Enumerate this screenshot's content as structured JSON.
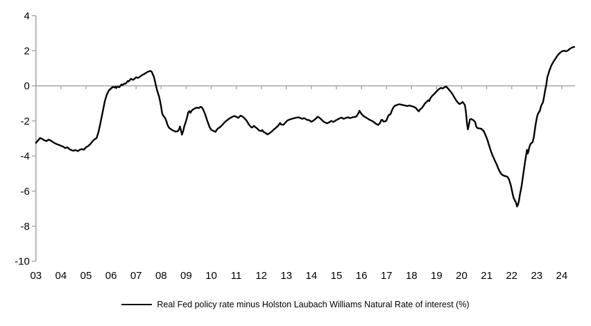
{
  "chart_data": {
    "type": "line",
    "title": "",
    "legend": "Real Fed policy rate minus Holston Laubach Williams Natural Rate of interest (%)",
    "line_color": "#000000",
    "axis_color": "#a6a6a6",
    "text_color": "#000000",
    "grid": "zero-line-only",
    "legend_position": "bottom-center",
    "ylim": [
      -10,
      4
    ],
    "xlim": [
      2003,
      2024.6
    ],
    "y_ticks": [
      4,
      2,
      0,
      -2,
      -4,
      -6,
      -8,
      -10
    ],
    "x_tick_labels": [
      "03",
      "04",
      "05",
      "06",
      "07",
      "08",
      "09",
      "10",
      "11",
      "12",
      "13",
      "14",
      "15",
      "16",
      "17",
      "18",
      "19",
      "20",
      "21",
      "22",
      "23",
      "24"
    ],
    "points": [
      [
        2003.0,
        -3.25
      ],
      [
        2003.08,
        -3.12
      ],
      [
        2003.17,
        -2.97
      ],
      [
        2003.25,
        -3.03
      ],
      [
        2003.33,
        -3.1
      ],
      [
        2003.42,
        -3.15
      ],
      [
        2003.5,
        -3.07
      ],
      [
        2003.58,
        -3.11
      ],
      [
        2003.67,
        -3.2
      ],
      [
        2003.75,
        -3.27
      ],
      [
        2003.83,
        -3.32
      ],
      [
        2003.92,
        -3.37
      ],
      [
        2004.0,
        -3.42
      ],
      [
        2004.08,
        -3.46
      ],
      [
        2004.17,
        -3.55
      ],
      [
        2004.25,
        -3.5
      ],
      [
        2004.33,
        -3.6
      ],
      [
        2004.42,
        -3.67
      ],
      [
        2004.5,
        -3.7
      ],
      [
        2004.58,
        -3.66
      ],
      [
        2004.67,
        -3.72
      ],
      [
        2004.75,
        -3.65
      ],
      [
        2004.83,
        -3.6
      ],
      [
        2004.92,
        -3.64
      ],
      [
        2005.0,
        -3.5
      ],
      [
        2005.08,
        -3.44
      ],
      [
        2005.17,
        -3.32
      ],
      [
        2005.25,
        -3.18
      ],
      [
        2005.33,
        -3.06
      ],
      [
        2005.42,
        -2.98
      ],
      [
        2005.5,
        -2.62
      ],
      [
        2005.58,
        -2.1
      ],
      [
        2005.67,
        -1.45
      ],
      [
        2005.75,
        -0.88
      ],
      [
        2005.83,
        -0.5
      ],
      [
        2005.92,
        -0.25
      ],
      [
        2006.0,
        -0.15
      ],
      [
        2006.08,
        -0.06
      ],
      [
        2006.13,
        -0.1
      ],
      [
        2006.17,
        -0.05
      ],
      [
        2006.21,
        -0.13
      ],
      [
        2006.25,
        -0.04
      ],
      [
        2006.33,
        -0.08
      ],
      [
        2006.38,
        0.02
      ],
      [
        2006.42,
        0.08
      ],
      [
        2006.46,
        0.04
      ],
      [
        2006.54,
        0.14
      ],
      [
        2006.58,
        0.12
      ],
      [
        2006.67,
        0.28
      ],
      [
        2006.71,
        0.25
      ],
      [
        2006.79,
        0.4
      ],
      [
        2006.88,
        0.34
      ],
      [
        2006.92,
        0.38
      ],
      [
        2007.0,
        0.49
      ],
      [
        2007.08,
        0.45
      ],
      [
        2007.17,
        0.54
      ],
      [
        2007.25,
        0.62
      ],
      [
        2007.33,
        0.68
      ],
      [
        2007.42,
        0.76
      ],
      [
        2007.5,
        0.82
      ],
      [
        2007.58,
        0.85
      ],
      [
        2007.63,
        0.79
      ],
      [
        2007.67,
        0.64
      ],
      [
        2007.71,
        0.52
      ],
      [
        2007.75,
        0.28
      ],
      [
        2007.79,
        0.03
      ],
      [
        2007.83,
        -0.22
      ],
      [
        2007.88,
        -0.45
      ],
      [
        2007.92,
        -0.62
      ],
      [
        2007.96,
        -0.9
      ],
      [
        2008.0,
        -1.2
      ],
      [
        2008.04,
        -1.55
      ],
      [
        2008.08,
        -1.7
      ],
      [
        2008.13,
        -1.78
      ],
      [
        2008.17,
        -1.86
      ],
      [
        2008.21,
        -2.02
      ],
      [
        2008.25,
        -2.2
      ],
      [
        2008.29,
        -2.33
      ],
      [
        2008.33,
        -2.41
      ],
      [
        2008.42,
        -2.5
      ],
      [
        2008.5,
        -2.56
      ],
      [
        2008.58,
        -2.61
      ],
      [
        2008.67,
        -2.58
      ],
      [
        2008.71,
        -2.5
      ],
      [
        2008.75,
        -2.32
      ],
      [
        2008.79,
        -2.52
      ],
      [
        2008.83,
        -2.78
      ],
      [
        2008.88,
        -2.58
      ],
      [
        2008.92,
        -2.33
      ],
      [
        2008.96,
        -2.15
      ],
      [
        2009.0,
        -1.98
      ],
      [
        2009.04,
        -1.78
      ],
      [
        2009.08,
        -1.52
      ],
      [
        2009.13,
        -1.44
      ],
      [
        2009.17,
        -1.54
      ],
      [
        2009.21,
        -1.44
      ],
      [
        2009.25,
        -1.37
      ],
      [
        2009.33,
        -1.3
      ],
      [
        2009.42,
        -1.24
      ],
      [
        2009.5,
        -1.27
      ],
      [
        2009.58,
        -1.19
      ],
      [
        2009.63,
        -1.24
      ],
      [
        2009.67,
        -1.33
      ],
      [
        2009.71,
        -1.45
      ],
      [
        2009.75,
        -1.6
      ],
      [
        2009.79,
        -1.76
      ],
      [
        2009.83,
        -1.95
      ],
      [
        2009.88,
        -2.14
      ],
      [
        2009.92,
        -2.3
      ],
      [
        2009.96,
        -2.42
      ],
      [
        2010.0,
        -2.5
      ],
      [
        2010.08,
        -2.57
      ],
      [
        2010.17,
        -2.62
      ],
      [
        2010.21,
        -2.54
      ],
      [
        2010.25,
        -2.45
      ],
      [
        2010.33,
        -2.38
      ],
      [
        2010.42,
        -2.26
      ],
      [
        2010.5,
        -2.13
      ],
      [
        2010.58,
        -2.02
      ],
      [
        2010.67,
        -1.92
      ],
      [
        2010.75,
        -1.84
      ],
      [
        2010.83,
        -1.78
      ],
      [
        2010.92,
        -1.72
      ],
      [
        2011.0,
        -1.76
      ],
      [
        2011.08,
        -1.83
      ],
      [
        2011.17,
        -1.7
      ],
      [
        2011.25,
        -1.75
      ],
      [
        2011.33,
        -1.85
      ],
      [
        2011.42,
        -2.0
      ],
      [
        2011.5,
        -2.2
      ],
      [
        2011.58,
        -2.33
      ],
      [
        2011.63,
        -2.38
      ],
      [
        2011.71,
        -2.28
      ],
      [
        2011.75,
        -2.34
      ],
      [
        2011.83,
        -2.43
      ],
      [
        2011.92,
        -2.55
      ],
      [
        2012.0,
        -2.58
      ],
      [
        2012.04,
        -2.52
      ],
      [
        2012.08,
        -2.61
      ],
      [
        2012.17,
        -2.69
      ],
      [
        2012.25,
        -2.77
      ],
      [
        2012.33,
        -2.7
      ],
      [
        2012.42,
        -2.6
      ],
      [
        2012.5,
        -2.48
      ],
      [
        2012.58,
        -2.4
      ],
      [
        2012.67,
        -2.28
      ],
      [
        2012.75,
        -2.12
      ],
      [
        2012.79,
        -2.2
      ],
      [
        2012.88,
        -2.22
      ],
      [
        2012.96,
        -2.1
      ],
      [
        2013.04,
        -1.98
      ],
      [
        2013.13,
        -1.92
      ],
      [
        2013.25,
        -1.87
      ],
      [
        2013.38,
        -1.82
      ],
      [
        2013.5,
        -1.8
      ],
      [
        2013.63,
        -1.88
      ],
      [
        2013.71,
        -1.84
      ],
      [
        2013.83,
        -1.94
      ],
      [
        2013.92,
        -1.96
      ],
      [
        2014.0,
        -2.05
      ],
      [
        2014.08,
        -1.98
      ],
      [
        2014.17,
        -1.88
      ],
      [
        2014.25,
        -1.76
      ],
      [
        2014.33,
        -1.83
      ],
      [
        2014.42,
        -1.95
      ],
      [
        2014.5,
        -2.06
      ],
      [
        2014.63,
        -2.14
      ],
      [
        2014.71,
        -2.08
      ],
      [
        2014.79,
        -2.0
      ],
      [
        2014.88,
        -2.06
      ],
      [
        2014.96,
        -1.98
      ],
      [
        2015.04,
        -1.92
      ],
      [
        2015.13,
        -1.85
      ],
      [
        2015.21,
        -1.81
      ],
      [
        2015.29,
        -1.88
      ],
      [
        2015.38,
        -1.83
      ],
      [
        2015.46,
        -1.79
      ],
      [
        2015.54,
        -1.84
      ],
      [
        2015.63,
        -1.8
      ],
      [
        2015.71,
        -1.78
      ],
      [
        2015.79,
        -1.76
      ],
      [
        2015.88,
        -1.56
      ],
      [
        2015.92,
        -1.42
      ],
      [
        2016.0,
        -1.6
      ],
      [
        2016.08,
        -1.72
      ],
      [
        2016.17,
        -1.8
      ],
      [
        2016.25,
        -1.87
      ],
      [
        2016.33,
        -1.94
      ],
      [
        2016.42,
        -2.0
      ],
      [
        2016.5,
        -2.07
      ],
      [
        2016.58,
        -2.16
      ],
      [
        2016.67,
        -2.23
      ],
      [
        2016.75,
        -2.1
      ],
      [
        2016.79,
        -1.95
      ],
      [
        2016.83,
        -1.94
      ],
      [
        2016.88,
        -2.04
      ],
      [
        2016.96,
        -2.02
      ],
      [
        2017.0,
        -1.97
      ],
      [
        2017.04,
        -1.82
      ],
      [
        2017.08,
        -1.68
      ],
      [
        2017.13,
        -1.65
      ],
      [
        2017.17,
        -1.58
      ],
      [
        2017.21,
        -1.42
      ],
      [
        2017.25,
        -1.3
      ],
      [
        2017.29,
        -1.2
      ],
      [
        2017.33,
        -1.14
      ],
      [
        2017.42,
        -1.09
      ],
      [
        2017.5,
        -1.05
      ],
      [
        2017.58,
        -1.07
      ],
      [
        2017.67,
        -1.1
      ],
      [
        2017.75,
        -1.13
      ],
      [
        2017.83,
        -1.15
      ],
      [
        2017.92,
        -1.12
      ],
      [
        2018.0,
        -1.16
      ],
      [
        2018.08,
        -1.19
      ],
      [
        2018.17,
        -1.26
      ],
      [
        2018.25,
        -1.4
      ],
      [
        2018.29,
        -1.45
      ],
      [
        2018.33,
        -1.36
      ],
      [
        2018.42,
        -1.25
      ],
      [
        2018.46,
        -1.17
      ],
      [
        2018.54,
        -1.0
      ],
      [
        2018.63,
        -0.88
      ],
      [
        2018.67,
        -0.82
      ],
      [
        2018.71,
        -0.87
      ],
      [
        2018.75,
        -0.71
      ],
      [
        2018.83,
        -0.56
      ],
      [
        2018.92,
        -0.44
      ],
      [
        2019.0,
        -0.31
      ],
      [
        2019.08,
        -0.2
      ],
      [
        2019.17,
        -0.12
      ],
      [
        2019.25,
        -0.15
      ],
      [
        2019.33,
        -0.07
      ],
      [
        2019.38,
        -0.04
      ],
      [
        2019.46,
        -0.16
      ],
      [
        2019.54,
        -0.29
      ],
      [
        2019.63,
        -0.46
      ],
      [
        2019.71,
        -0.66
      ],
      [
        2019.79,
        -0.85
      ],
      [
        2019.88,
        -1.0
      ],
      [
        2019.92,
        -1.04
      ],
      [
        2020.0,
        -0.97
      ],
      [
        2020.04,
        -0.92
      ],
      [
        2020.08,
        -0.99
      ],
      [
        2020.13,
        -1.1
      ],
      [
        2020.17,
        -1.45
      ],
      [
        2020.21,
        -2.1
      ],
      [
        2020.25,
        -2.48
      ],
      [
        2020.29,
        -2.22
      ],
      [
        2020.33,
        -1.92
      ],
      [
        2020.38,
        -1.89
      ],
      [
        2020.46,
        -1.95
      ],
      [
        2020.54,
        -2.06
      ],
      [
        2020.58,
        -2.3
      ],
      [
        2020.63,
        -2.41
      ],
      [
        2020.71,
        -2.43
      ],
      [
        2020.79,
        -2.45
      ],
      [
        2020.83,
        -2.52
      ],
      [
        2020.88,
        -2.57
      ],
      [
        2020.92,
        -2.7
      ],
      [
        2020.96,
        -2.84
      ],
      [
        2021.0,
        -2.97
      ],
      [
        2021.04,
        -3.12
      ],
      [
        2021.08,
        -3.32
      ],
      [
        2021.13,
        -3.55
      ],
      [
        2021.17,
        -3.72
      ],
      [
        2021.21,
        -3.88
      ],
      [
        2021.25,
        -4.02
      ],
      [
        2021.29,
        -4.14
      ],
      [
        2021.33,
        -4.28
      ],
      [
        2021.38,
        -4.42
      ],
      [
        2021.42,
        -4.56
      ],
      [
        2021.46,
        -4.7
      ],
      [
        2021.5,
        -4.82
      ],
      [
        2021.54,
        -4.93
      ],
      [
        2021.58,
        -5.01
      ],
      [
        2021.63,
        -5.08
      ],
      [
        2021.67,
        -5.11
      ],
      [
        2021.71,
        -5.13
      ],
      [
        2021.75,
        -5.15
      ],
      [
        2021.79,
        -5.16
      ],
      [
        2021.83,
        -5.19
      ],
      [
        2021.88,
        -5.3
      ],
      [
        2021.92,
        -5.46
      ],
      [
        2021.96,
        -5.66
      ],
      [
        2022.0,
        -5.9
      ],
      [
        2022.04,
        -6.18
      ],
      [
        2022.08,
        -6.4
      ],
      [
        2022.13,
        -6.55
      ],
      [
        2022.17,
        -6.64
      ],
      [
        2022.21,
        -6.88
      ],
      [
        2022.25,
        -6.79
      ],
      [
        2022.29,
        -6.54
      ],
      [
        2022.33,
        -6.18
      ],
      [
        2022.38,
        -5.84
      ],
      [
        2022.42,
        -5.45
      ],
      [
        2022.46,
        -5.05
      ],
      [
        2022.5,
        -4.65
      ],
      [
        2022.54,
        -4.26
      ],
      [
        2022.58,
        -3.92
      ],
      [
        2022.61,
        -3.65
      ],
      [
        2022.64,
        -3.86
      ],
      [
        2022.67,
        -3.72
      ],
      [
        2022.71,
        -3.46
      ],
      [
        2022.75,
        -3.32
      ],
      [
        2022.79,
        -3.26
      ],
      [
        2022.83,
        -3.22
      ],
      [
        2022.88,
        -2.95
      ],
      [
        2022.92,
        -2.55
      ],
      [
        2022.96,
        -2.15
      ],
      [
        2023.0,
        -1.85
      ],
      [
        2023.04,
        -1.62
      ],
      [
        2023.08,
        -1.52
      ],
      [
        2023.13,
        -1.4
      ],
      [
        2023.17,
        -1.16
      ],
      [
        2023.21,
        -1.04
      ],
      [
        2023.25,
        -0.94
      ],
      [
        2023.29,
        -0.63
      ],
      [
        2023.33,
        -0.3
      ],
      [
        2023.38,
        0.05
      ],
      [
        2023.42,
        0.48
      ],
      [
        2023.5,
        0.85
      ],
      [
        2023.58,
        1.15
      ],
      [
        2023.67,
        1.38
      ],
      [
        2023.75,
        1.56
      ],
      [
        2023.83,
        1.73
      ],
      [
        2023.92,
        1.87
      ],
      [
        2024.0,
        1.96
      ],
      [
        2024.08,
        2.0
      ],
      [
        2024.17,
        1.97
      ],
      [
        2024.25,
        2.02
      ],
      [
        2024.33,
        2.12
      ],
      [
        2024.42,
        2.19
      ],
      [
        2024.5,
        2.22
      ]
    ]
  }
}
